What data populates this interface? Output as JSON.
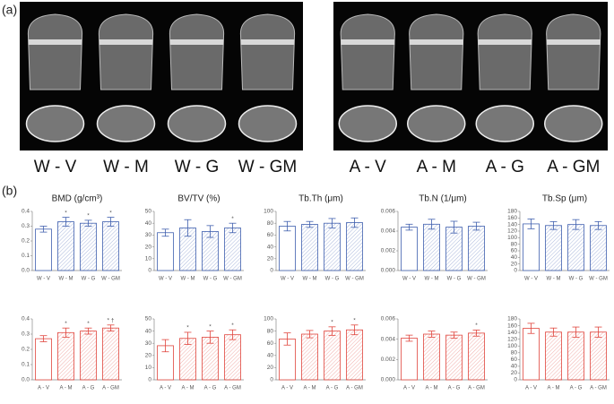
{
  "panel_a": {
    "label": "(a)",
    "labels": [
      "W - V",
      "W - M",
      "W - G",
      "W - GM",
      "A - V",
      "A - M",
      "A - G",
      "A - GM"
    ]
  },
  "panel_b_label": "(b)",
  "chart_data": [
    {
      "type": "bar",
      "title": "BMD (g/cm³)",
      "categories": [
        "W - V",
        "W - M",
        "W - G",
        "W - GM"
      ],
      "values": [
        0.28,
        0.33,
        0.32,
        0.33
      ],
      "errors": [
        0.02,
        0.03,
        0.02,
        0.03
      ],
      "markers": [
        null,
        "*",
        "*",
        "*"
      ],
      "color": "#3f5fae",
      "ylim": [
        0,
        0.4
      ],
      "yticks": [
        {
          "value": 0,
          "label": "0.0"
        },
        0.1,
        0.2,
        0.3,
        0.4
      ]
    },
    {
      "type": "bar",
      "title": "BV/TV (%)",
      "categories": [
        "W - V",
        "W - M",
        "W - G",
        "W - GM"
      ],
      "values": [
        32,
        36,
        33,
        36
      ],
      "errors": [
        3,
        7,
        5,
        4
      ],
      "markers": [
        null,
        null,
        null,
        "*"
      ],
      "color": "#3f5fae",
      "ylim": [
        0,
        50
      ],
      "yticks": [
        0,
        10,
        20,
        30,
        40,
        50
      ]
    },
    {
      "type": "bar",
      "title": "Tb.Th (μm)",
      "categories": [
        "W - V",
        "W - M",
        "W - G",
        "W - GM"
      ],
      "values": [
        75,
        78,
        80,
        81
      ],
      "errors": [
        8,
        5,
        8,
        8
      ],
      "color": "#3f5fae",
      "ylim": [
        0,
        100
      ],
      "yticks": [
        0,
        20,
        40,
        60,
        80,
        100
      ]
    },
    {
      "type": "bar",
      "title": "Tb.N (1/μm)",
      "categories": [
        "W - V",
        "W - M",
        "W - G",
        "W - GM"
      ],
      "values": [
        0.0044,
        0.0047,
        0.0044,
        0.0045
      ],
      "errors": [
        0.0003,
        0.0005,
        0.0006,
        0.0004
      ],
      "color": "#3f5fae",
      "ylim": [
        0,
        0.006
      ],
      "yticks": [
        {
          "value": 0,
          "label": "0.000"
        },
        {
          "value": 0.002,
          "label": "0.002"
        },
        {
          "value": 0.004,
          "label": "0.004"
        },
        {
          "value": 0.006,
          "label": "0.006"
        }
      ]
    },
    {
      "type": "bar",
      "title": "Tb.Sp (μm)",
      "categories": [
        "W - V",
        "W - M",
        "W - G",
        "W - GM"
      ],
      "values": [
        142,
        137,
        140,
        137
      ],
      "errors": [
        15,
        12,
        15,
        12
      ],
      "color": "#3f5fae",
      "ylim": [
        0,
        180
      ],
      "yticks": [
        0,
        20,
        40,
        60,
        80,
        100,
        120,
        140,
        160,
        180
      ]
    },
    {
      "type": "bar",
      "categories": [
        "A - V",
        "A - M",
        "A - G",
        "A - GM"
      ],
      "values": [
        0.27,
        0.31,
        0.32,
        0.34
      ],
      "errors": [
        0.02,
        0.03,
        0.02,
        0.02
      ],
      "markers": [
        null,
        "*",
        "*",
        "* †"
      ],
      "color": "#e0453d",
      "ylim": [
        0,
        0.4
      ],
      "yticks": [
        {
          "value": 0,
          "label": "0.0"
        },
        0.1,
        0.2,
        0.3,
        0.4
      ]
    },
    {
      "type": "bar",
      "categories": [
        "A - V",
        "A - M",
        "A - G",
        "A - GM"
      ],
      "values": [
        28,
        34,
        35,
        37
      ],
      "errors": [
        5,
        5,
        5,
        4
      ],
      "markers": [
        null,
        "*",
        "*",
        "*"
      ],
      "color": "#e0453d",
      "ylim": [
        0,
        50
      ],
      "yticks": [
        0,
        10,
        20,
        30,
        40,
        50
      ]
    },
    {
      "type": "bar",
      "categories": [
        "A - V",
        "A - M",
        "A - G",
        "A - GM"
      ],
      "values": [
        67,
        75,
        80,
        82
      ],
      "errors": [
        10,
        6,
        7,
        8
      ],
      "markers": [
        null,
        null,
        "*",
        "*"
      ],
      "color": "#e0453d",
      "ylim": [
        0,
        100
      ],
      "yticks": [
        0,
        20,
        40,
        60,
        80,
        100
      ]
    },
    {
      "type": "bar",
      "categories": [
        "A - V",
        "A - M",
        "A - G",
        "A - GM"
      ],
      "values": [
        0.0041,
        0.0045,
        0.0044,
        0.0046
      ],
      "errors": [
        0.0003,
        0.0003,
        0.0003,
        0.0003
      ],
      "markers": [
        null,
        null,
        null,
        "*"
      ],
      "color": "#e0453d",
      "ylim": [
        0,
        0.006
      ],
      "yticks": [
        {
          "value": 0,
          "label": "0.000"
        },
        {
          "value": 0.002,
          "label": "0.002"
        },
        {
          "value": 0.004,
          "label": "0.004"
        },
        {
          "value": 0.006,
          "label": "0.006"
        }
      ]
    },
    {
      "type": "bar",
      "categories": [
        "A - V",
        "A - M",
        "A - G",
        "A - GM"
      ],
      "values": [
        152,
        141,
        141,
        141
      ],
      "errors": [
        15,
        12,
        15,
        15
      ],
      "color": "#e0453d",
      "ylim": [
        0,
        180
      ],
      "yticks": [
        0,
        20,
        40,
        60,
        80,
        100,
        120,
        140,
        160,
        180
      ]
    }
  ]
}
